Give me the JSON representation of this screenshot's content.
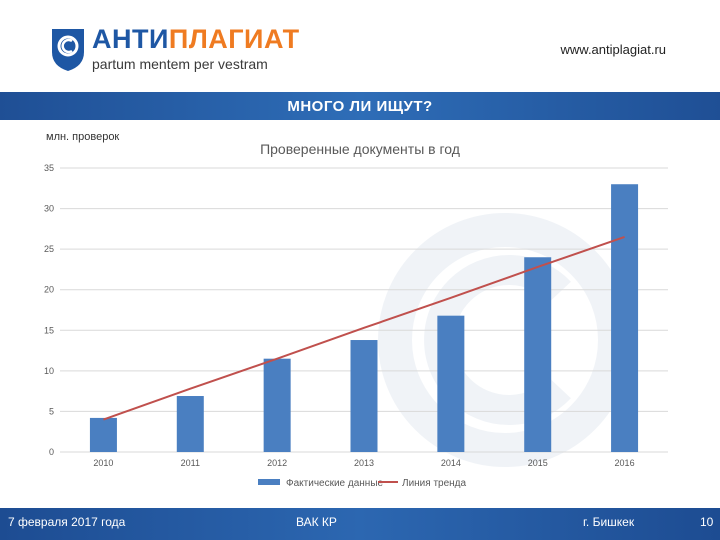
{
  "header": {
    "brand_prefix": "АНТИ",
    "brand_suffix": "ПЛАГИАТ",
    "tagline": "partum mentem per vestram",
    "site_url": "www.antiplagiat.ru"
  },
  "banner": {
    "title": "МНОГО ЛИ ИЩУТ?"
  },
  "footer": {
    "date": "7 февраля 2017 года",
    "organization": "ВАК КР",
    "city": "г. Бишкек",
    "page_number": "10"
  },
  "colors": {
    "bar": "#4a7fc1",
    "trend": "#c0504d",
    "brand_blue": "#1e57a4",
    "brand_orange": "#ef7b21"
  },
  "chart_data": {
    "type": "bar",
    "title": "Проверенные документы в год",
    "ylabel": "млн. проверок",
    "categories": [
      "2010",
      "2011",
      "2012",
      "2013",
      "2014",
      "2015",
      "2016"
    ],
    "series": [
      {
        "name": "Фактические данные",
        "type": "bar",
        "values": [
          4.2,
          6.9,
          11.5,
          13.8,
          16.8,
          24.0,
          33.0
        ]
      },
      {
        "name": "Линия тренда",
        "type": "line",
        "values": [
          4.0,
          7.8,
          11.5,
          15.3,
          19.0,
          22.8,
          26.5
        ]
      }
    ],
    "yticks": [
      0,
      5,
      10,
      15,
      20,
      25,
      30,
      35
    ],
    "ylim": [
      0,
      35
    ],
    "grid": true,
    "legend": "bottom"
  }
}
